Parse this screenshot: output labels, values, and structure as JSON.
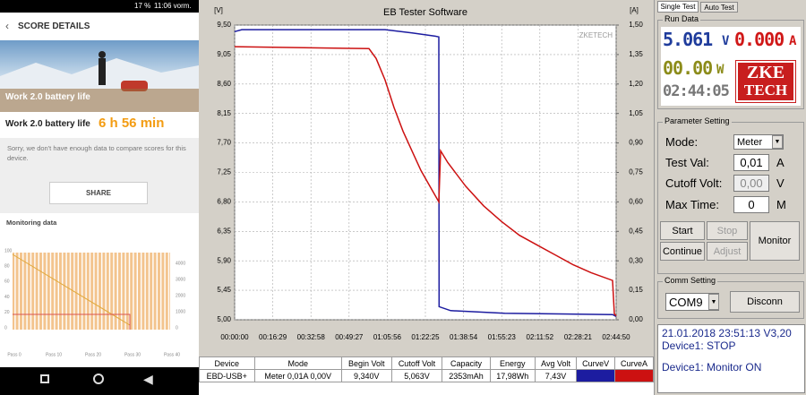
{
  "phone": {
    "status_battery": "17 %",
    "status_time": "11:06 vorm.",
    "header": "SCORE DETAILS",
    "banner": "Work 2.0 battery life",
    "result_label": "Work 2.0 battery life",
    "result_value": "6 h 56 min",
    "note": "Sorry, we don't have enough data to compare scores for this device.",
    "share": "SHARE",
    "monitoring_title": "Monitoring data",
    "left_ticks": [
      "100",
      "80",
      "60",
      "40",
      "20",
      "0"
    ],
    "right_ticks": [
      "4000",
      "3000",
      "2000",
      "1000",
      "0"
    ],
    "x_labels": [
      "Pass 0",
      "Pass 10",
      "Pass 20",
      "Pass 30",
      "Pass 40"
    ]
  },
  "chart_data": {
    "type": "line",
    "title": "EB Tester Software",
    "y_label": "[V]",
    "y2_label": "[A]",
    "watermark": "ZKETECH",
    "grid": true,
    "xlim": [
      0,
      9890
    ],
    "xticks": [
      {
        "value": 0,
        "label": "00:00:00"
      },
      {
        "value": 989,
        "label": "00:16:29"
      },
      {
        "value": 1978,
        "label": "00:32:58"
      },
      {
        "value": 2967,
        "label": "00:49:27"
      },
      {
        "value": 3956,
        "label": "01:05:56"
      },
      {
        "value": 4945,
        "label": "01:22:25"
      },
      {
        "value": 5934,
        "label": "01:38:54"
      },
      {
        "value": 6923,
        "label": "01:55:23"
      },
      {
        "value": 7912,
        "label": "02:11:52"
      },
      {
        "value": 8901,
        "label": "02:28:21"
      },
      {
        "value": 9890,
        "label": "02:44:50"
      }
    ],
    "ylim": [
      5.0,
      9.5
    ],
    "yticks": [
      {
        "value": 9.5,
        "label": "9,50"
      },
      {
        "value": 9.05,
        "label": "9,05"
      },
      {
        "value": 8.6,
        "label": "8,60"
      },
      {
        "value": 8.15,
        "label": "8,15"
      },
      {
        "value": 7.7,
        "label": "7,70"
      },
      {
        "value": 7.25,
        "label": "7,25"
      },
      {
        "value": 6.8,
        "label": "6,80"
      },
      {
        "value": 6.35,
        "label": "6,35"
      },
      {
        "value": 5.9,
        "label": "5,90"
      },
      {
        "value": 5.45,
        "label": "5,45"
      },
      {
        "value": 5.0,
        "label": "5,00"
      }
    ],
    "y2lim": [
      0,
      1.5
    ],
    "y2ticks": [
      {
        "value": 1.5,
        "label": "1,50"
      },
      {
        "value": 1.35,
        "label": "1,35"
      },
      {
        "value": 1.2,
        "label": "1,20"
      },
      {
        "value": 1.05,
        "label": "1,05"
      },
      {
        "value": 0.9,
        "label": "0,90"
      },
      {
        "value": 0.75,
        "label": "0,75"
      },
      {
        "value": 0.6,
        "label": "0,60"
      },
      {
        "value": 0.45,
        "label": "0,45"
      },
      {
        "value": 0.3,
        "label": "0,30"
      },
      {
        "value": 0.15,
        "label": "0,15"
      },
      {
        "value": 0,
        "label": "0,00"
      }
    ],
    "series": [
      {
        "color": "#1c1ca0",
        "x": [
          0,
          186,
          3900,
          4600,
          5200,
          5293,
          5300,
          5600,
          7000,
          9800,
          9890
        ],
        "values": [
          9.4,
          9.43,
          9.43,
          9.38,
          9.33,
          9.32,
          5.2,
          5.14,
          5.1,
          5.08,
          5.05
        ]
      },
      {
        "color": "#cc1111",
        "axis": "y2",
        "x": [
          0,
          3482,
          3668,
          3900,
          4132,
          4365,
          4597,
          4829,
          5061,
          5293,
          5340,
          5525,
          5990,
          6454,
          6918,
          7383,
          7847,
          8311,
          8776,
          9240,
          9797,
          9843,
          9890
        ],
        "values": [
          1.39,
          1.38,
          1.33,
          1.22,
          1.08,
          0.96,
          0.86,
          0.76,
          0.68,
          0.6,
          0.86,
          0.8,
          0.68,
          0.58,
          0.5,
          0.43,
          0.38,
          0.33,
          0.28,
          0.24,
          0.2,
          0.03,
          0.02
        ]
      }
    ]
  },
  "table": {
    "headers": [
      "Device",
      "Mode",
      "Begin Volt",
      "Cutoff Volt",
      "Capacity",
      "Energy",
      "Avg Volt",
      "CurveV",
      "CurveA"
    ],
    "rows": [
      [
        "EBD-USB+",
        "Meter  0,01A  0,00V",
        "9,340V",
        "5,063V",
        "2353mAh",
        "17,98Wh",
        "7,43V"
      ]
    ]
  },
  "panel": {
    "tab_single": "Single Test",
    "tab_auto": "Auto Test",
    "run_data": "Run Data",
    "volt": "5.061",
    "volt_unit": "V",
    "amp": "0.000",
    "amp_unit": "A",
    "watt": "00.00",
    "watt_unit": "W",
    "time": "02:44:05",
    "logo_top": "ZKE",
    "logo_bottom": "TECH",
    "param_title": "Parameter Setting",
    "mode_label": "Mode:",
    "mode_value": "Meter",
    "test_label": "Test Val:",
    "test_value": "0,01",
    "test_unit": "A",
    "cutoff_label": "Cutoff Volt:",
    "cutoff_value": "0,00",
    "cutoff_unit": "V",
    "time_label": "Max Time:",
    "time_value": "0",
    "time_unit": "M",
    "start": "Start",
    "stop": "Stop",
    "continue": "Continue",
    "adjust": "Adjust",
    "monitor": "Monitor",
    "comm_title": "Comm Setting",
    "com_port": "COM9",
    "disconn": "Disconn",
    "log": [
      "21.01.2018 23:51:13   V3,20",
      "Device1: STOP",
      "Device1: Monitor ON"
    ]
  }
}
